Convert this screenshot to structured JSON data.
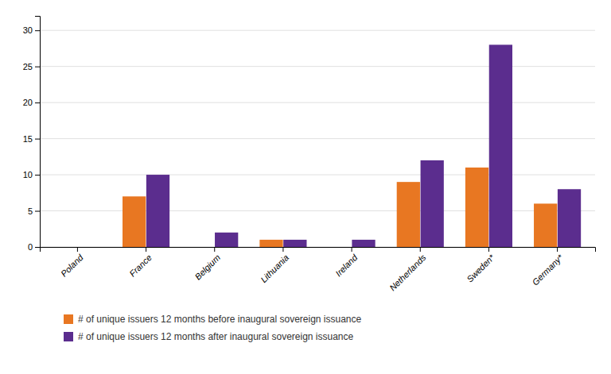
{
  "chart_data": {
    "type": "bar",
    "categories": [
      "Poland",
      "France",
      "Belgium",
      "Lithuania",
      "Ireland",
      "Netherlands",
      "Sweden*",
      "Germany*"
    ],
    "series": [
      {
        "name": "# of unique issuers 12 months before inaugural sovereign issuance",
        "color": "#E87722",
        "values": [
          0,
          7,
          0,
          1,
          0,
          9,
          11,
          6
        ]
      },
      {
        "name": "# of unique issuers 12 months after inaugural sovereign issuance",
        "color": "#5B2D8E",
        "values": [
          0,
          10,
          2,
          1,
          1,
          12,
          28,
          8
        ]
      }
    ],
    "ylim": [
      0,
      32
    ],
    "yticks": [
      0,
      5,
      10,
      15,
      20,
      25,
      30
    ],
    "grid": true,
    "legend": "bottom"
  }
}
